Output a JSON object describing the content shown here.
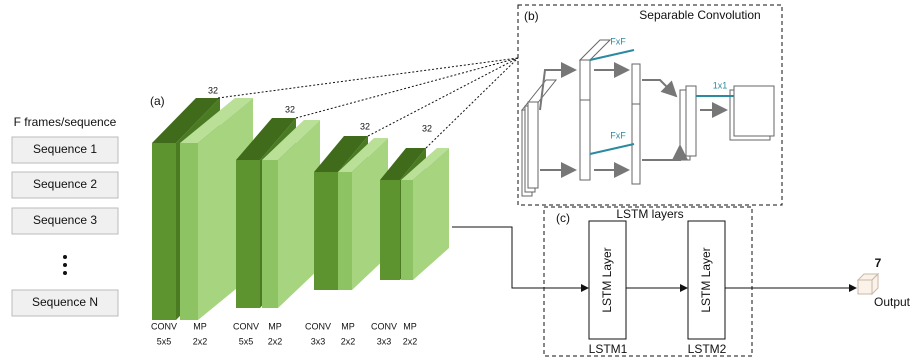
{
  "input": {
    "title": "F frames/sequence",
    "sequences": [
      "Sequence 1",
      "Sequence 2",
      "Sequence 3",
      "Sequence N"
    ]
  },
  "cnn": {
    "label": "(a)",
    "channels": [
      "32",
      "32",
      "32",
      "32"
    ],
    "layers": [
      [
        "CONV",
        "5x5"
      ],
      [
        "MP",
        "2x2"
      ],
      [
        "CONV",
        "5x5"
      ],
      [
        "MP",
        "2x2"
      ],
      [
        "CONV",
        "3x3"
      ],
      [
        "MP",
        "2x2"
      ],
      [
        "CONV",
        "3x3"
      ],
      [
        "MP",
        "2x2"
      ]
    ]
  },
  "separable": {
    "label": "(b)",
    "title": "Separable Convolution",
    "depthwise": [
      "FxF",
      "FxF"
    ],
    "pointwise": "1x1"
  },
  "lstm": {
    "label": "(c)",
    "title": "LSTM layers",
    "layers": [
      "LSTM Layer",
      "LSTM Layer"
    ],
    "names": [
      "LSTM1",
      "LSTM2"
    ]
  },
  "output": {
    "count": "7",
    "label": "Output"
  }
}
